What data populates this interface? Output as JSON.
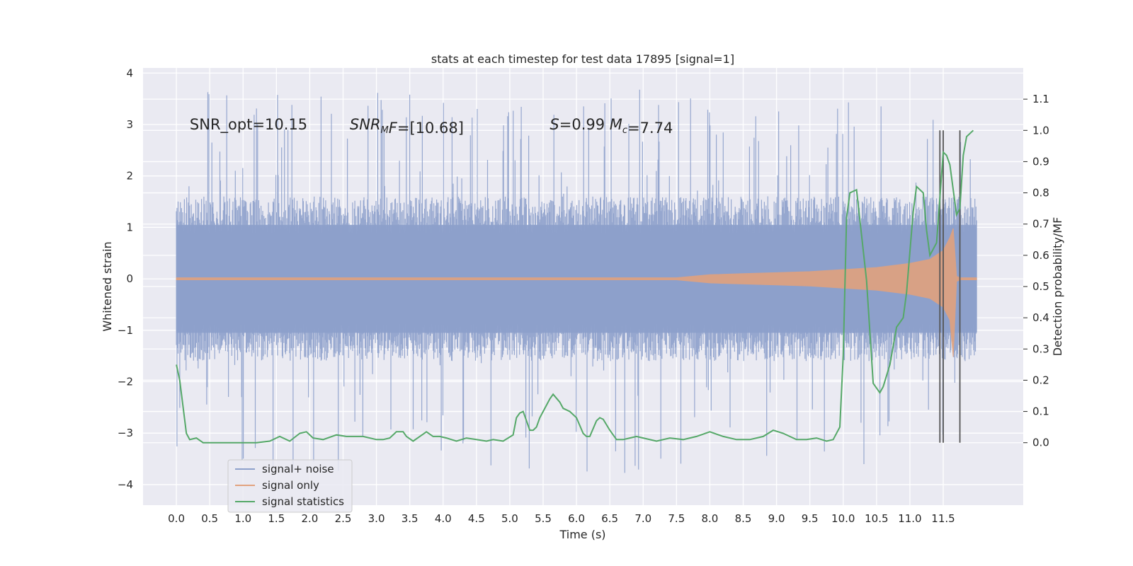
{
  "chart_data": {
    "type": "line",
    "title": "stats at each timestep for test data 17895 [signal=1]",
    "xlabel": "Time (s)",
    "ylabel": "Whitened strain",
    "y2label": "Detection probability/MF",
    "xlim": [
      -0.5,
      12.7
    ],
    "ylim": [
      -4.4,
      4.1
    ],
    "y2lim": [
      -0.2,
      1.2
    ],
    "xticks": [
      0.0,
      0.5,
      1.0,
      1.5,
      2.0,
      2.5,
      3.0,
      3.5,
      4.0,
      4.5,
      5.0,
      5.5,
      6.0,
      6.5,
      7.0,
      7.5,
      8.0,
      8.5,
      9.0,
      9.5,
      10.0,
      10.5,
      11.0,
      11.5
    ],
    "xtick_labels": [
      "0.0",
      "0.5",
      "1.0",
      "1.5",
      "2.0",
      "2.5",
      "3.0",
      "3.5",
      "4.0",
      "4.5",
      "5.0",
      "5.5",
      "6.0",
      "6.5",
      "7.0",
      "7.5",
      "8.0",
      "8.5",
      "9.0",
      "9.5",
      "10.0",
      "10.5",
      "11.0",
      "11.5"
    ],
    "yticks": [
      -4,
      -3,
      -2,
      -1,
      0,
      1,
      2,
      3,
      4
    ],
    "ytick_labels": [
      "−4",
      "−3",
      "−2",
      "−1",
      "0",
      "1",
      "2",
      "3",
      "4"
    ],
    "y2ticks": [
      0.0,
      0.1,
      0.2,
      0.3,
      0.4,
      0.5,
      0.6,
      0.7,
      0.8,
      0.9,
      1.0,
      1.1
    ],
    "y2tick_labels": [
      "0.0",
      "0.1",
      "0.2",
      "0.3",
      "0.4",
      "0.5",
      "0.6",
      "0.7",
      "0.8",
      "0.9",
      "1.0",
      "1.1"
    ],
    "grid": true,
    "legend_position": "lower-left",
    "series": [
      {
        "name": "signal+ noise",
        "axis": "left",
        "color": "#8da0cb",
        "x_range": [
          0.0,
          12.0
        ],
        "typical_envelope": [
          -1.6,
          1.6
        ],
        "spike_range": [
          -3.8,
          3.7
        ]
      },
      {
        "name": "signal only",
        "axis": "left",
        "color": "#e1a27e",
        "x": [
          0.0,
          7.5,
          8.0,
          8.5,
          9.0,
          9.5,
          10.0,
          10.5,
          11.0,
          11.3,
          11.5,
          11.6,
          11.65,
          11.7,
          11.75,
          12.0
        ],
        "amplitude": [
          0.02,
          0.02,
          0.08,
          0.1,
          0.12,
          0.14,
          0.18,
          0.22,
          0.3,
          0.38,
          0.55,
          0.8,
          0.98,
          0.05,
          0.02,
          0.02
        ]
      },
      {
        "name": "signal statistics",
        "axis": "right",
        "color": "#55a868",
        "x": [
          0.0,
          0.05,
          0.15,
          0.2,
          0.3,
          0.4,
          0.5,
          0.6,
          0.8,
          1.0,
          1.2,
          1.4,
          1.55,
          1.7,
          1.85,
          1.95,
          2.05,
          2.2,
          2.4,
          2.55,
          2.8,
          3.0,
          3.1,
          3.2,
          3.3,
          3.4,
          3.45,
          3.55,
          3.65,
          3.75,
          3.85,
          3.95,
          4.05,
          4.2,
          4.35,
          4.5,
          4.65,
          4.75,
          4.9,
          5.05,
          5.1,
          5.15,
          5.2,
          5.25,
          5.3,
          5.35,
          5.4,
          5.45,
          5.5,
          5.6,
          5.65,
          5.75,
          5.8,
          5.9,
          6.0,
          6.1,
          6.15,
          6.2,
          6.3,
          6.35,
          6.4,
          6.5,
          6.6,
          6.7,
          6.8,
          6.9,
          7.0,
          7.2,
          7.4,
          7.6,
          7.8,
          8.0,
          8.2,
          8.4,
          8.6,
          8.8,
          8.95,
          9.1,
          9.3,
          9.45,
          9.6,
          9.75,
          9.85,
          9.95,
          10.0,
          10.05,
          10.1,
          10.2,
          10.35,
          10.45,
          10.55,
          10.6,
          10.7,
          10.8,
          10.9,
          10.95,
          11.05,
          11.1,
          11.2,
          11.25,
          11.3,
          11.4,
          11.5,
          11.55,
          11.6,
          11.7,
          11.75,
          11.8,
          11.85,
          11.9,
          11.95
        ],
        "values": [
          0.25,
          0.2,
          0.03,
          0.01,
          0.015,
          0.0,
          0.0,
          0.0,
          0.0,
          0.0,
          0.0,
          0.005,
          0.02,
          0.005,
          0.03,
          0.035,
          0.015,
          0.01,
          0.025,
          0.02,
          0.02,
          0.01,
          0.01,
          0.015,
          0.035,
          0.035,
          0.02,
          0.005,
          0.02,
          0.035,
          0.02,
          0.02,
          0.015,
          0.005,
          0.015,
          0.01,
          0.005,
          0.01,
          0.005,
          0.025,
          0.08,
          0.095,
          0.1,
          0.07,
          0.04,
          0.04,
          0.05,
          0.08,
          0.1,
          0.14,
          0.155,
          0.13,
          0.11,
          0.1,
          0.08,
          0.03,
          0.02,
          0.02,
          0.07,
          0.08,
          0.075,
          0.04,
          0.01,
          0.01,
          0.015,
          0.02,
          0.015,
          0.005,
          0.015,
          0.01,
          0.02,
          0.035,
          0.02,
          0.01,
          0.01,
          0.02,
          0.04,
          0.03,
          0.01,
          0.01,
          0.015,
          0.005,
          0.01,
          0.05,
          0.28,
          0.72,
          0.8,
          0.81,
          0.52,
          0.19,
          0.16,
          0.18,
          0.25,
          0.37,
          0.4,
          0.48,
          0.74,
          0.82,
          0.8,
          0.68,
          0.6,
          0.64,
          0.93,
          0.92,
          0.89,
          0.73,
          0.75,
          0.92,
          0.98,
          0.99,
          1.0
        ]
      }
    ],
    "vertical_lines_x": [
      11.45,
      11.5,
      11.75
    ],
    "vertical_lines_y2": [
      0.0,
      1.0
    ],
    "annotations": [
      {
        "x": 0.2,
        "y": 2.9,
        "parts": [
          {
            "t": "SNR_opt=10.15"
          }
        ]
      },
      {
        "x": 2.6,
        "y": 2.9,
        "parts": [
          {
            "t": "SNR",
            "i": true
          },
          {
            "t": "M",
            "i": true,
            "sub": true
          },
          {
            "t": "F",
            "i": true
          },
          {
            "t": "=[10.68]"
          }
        ]
      },
      {
        "x": 5.6,
        "y": 2.9,
        "parts": [
          {
            "t": "S",
            "i": true
          },
          {
            "t": "=0.99   "
          },
          {
            "t": "M",
            "i": true
          },
          {
            "t": "c",
            "i": true,
            "sub": true
          },
          {
            "t": "=7.74"
          }
        ]
      }
    ]
  }
}
